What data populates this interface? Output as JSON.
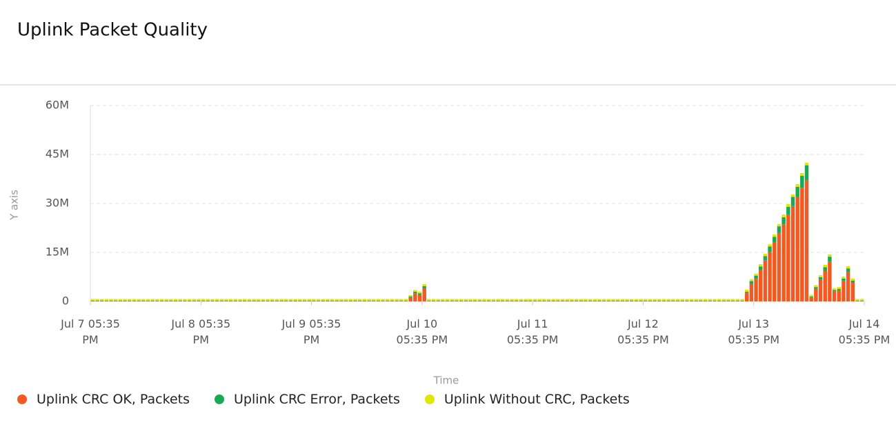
{
  "chart_data": {
    "type": "stacked_bar",
    "title": "Uplink Packet Quality",
    "x_label": "Time",
    "y_label": "Y axis",
    "categories": [
      null,
      null,
      null,
      null,
      null,
      null,
      null,
      null,
      null,
      null,
      null,
      null,
      null,
      null,
      null,
      null,
      null,
      null,
      null,
      null,
      null,
      null,
      null,
      null,
      null,
      null,
      null,
      null,
      null,
      null,
      null,
      null,
      null,
      null,
      null,
      null,
      null,
      null,
      null,
      null,
      null,
      null,
      null,
      null,
      null,
      null,
      null,
      null,
      null,
      null,
      null,
      null,
      null,
      null,
      null,
      null,
      null,
      null,
      null,
      null,
      null,
      null,
      null,
      null,
      null,
      null,
      null,
      null,
      null,
      null,
      null,
      null,
      null,
      null,
      null,
      null,
      null,
      null,
      null,
      null,
      null,
      null,
      null,
      null,
      null,
      null,
      null,
      null,
      null,
      null,
      null,
      null,
      null,
      null,
      null,
      null,
      null,
      null,
      null,
      null,
      null,
      null,
      null,
      null,
      null,
      null,
      null,
      null,
      null,
      null,
      null,
      null,
      null,
      null,
      null,
      null,
      null,
      null,
      null,
      null,
      null,
      null,
      null,
      null,
      null,
      null,
      null,
      null,
      null,
      null,
      null,
      null,
      null,
      null,
      null,
      null,
      null,
      null,
      null,
      null,
      null,
      null,
      null,
      null,
      null,
      null,
      null,
      null,
      null,
      null,
      null,
      null,
      null,
      null,
      null,
      null,
      null,
      null,
      null,
      null,
      null,
      null,
      null,
      null,
      null,
      null,
      null,
      null
    ],
    "xticks": [
      {
        "value": 0,
        "label": "Jul 7 05:35 PM"
      },
      {
        "value": 24,
        "label": "Jul 8 05:35 PM"
      },
      {
        "value": 48,
        "label": "Jul 9 05:35 PM"
      },
      {
        "value": 72,
        "label": "Jul 10 05:35 PM"
      },
      {
        "value": 96,
        "label": "Jul 11 05:35 PM"
      },
      {
        "value": 120,
        "label": "Jul 12 05:35 PM"
      },
      {
        "value": 144,
        "label": "Jul 13 05:35 PM"
      },
      {
        "value": 168,
        "label": "Jul 14 05:35 PM"
      }
    ],
    "ylim": [
      0,
      60000000
    ],
    "yticks": [
      0,
      {
        "value": 15000000,
        "label": "15M"
      },
      {
        "value": 30000000,
        "label": "30M"
      },
      {
        "value": 45000000,
        "label": "45M"
      },
      {
        "value": 60000000,
        "label": "60M"
      }
    ],
    "grid": true,
    "legend": "bottom",
    "series": [
      {
        "name": "Uplink CRC OK, Packets",
        "color": "#f15a22",
        "values": [
          100000,
          100000,
          100000,
          100000,
          100000,
          100000,
          100000,
          100000,
          100000,
          100000,
          100000,
          100000,
          100000,
          100000,
          100000,
          100000,
          100000,
          100000,
          100000,
          100000,
          100000,
          100000,
          100000,
          100000,
          100000,
          100000,
          100000,
          100000,
          100000,
          100000,
          100000,
          100000,
          100000,
          100000,
          100000,
          100000,
          100000,
          100000,
          100000,
          100000,
          100000,
          100000,
          100000,
          100000,
          100000,
          100000,
          100000,
          100000,
          100000,
          100000,
          100000,
          100000,
          100000,
          100000,
          100000,
          100000,
          100000,
          100000,
          100000,
          100000,
          100000,
          100000,
          100000,
          100000,
          100000,
          100000,
          100000,
          100000,
          100000,
          1200000,
          2500000,
          2000000,
          4000000,
          100000,
          100000,
          100000,
          100000,
          100000,
          100000,
          100000,
          100000,
          100000,
          100000,
          100000,
          100000,
          100000,
          100000,
          100000,
          100000,
          100000,
          100000,
          100000,
          100000,
          100000,
          100000,
          100000,
          100000,
          100000,
          100000,
          100000,
          100000,
          100000,
          100000,
          100000,
          100000,
          100000,
          100000,
          100000,
          100000,
          100000,
          100000,
          100000,
          100000,
          100000,
          100000,
          100000,
          100000,
          100000,
          100000,
          100000,
          100000,
          100000,
          100000,
          100000,
          100000,
          100000,
          100000,
          100000,
          100000,
          100000,
          100000,
          100000,
          100000,
          100000,
          100000,
          100000,
          100000,
          100000,
          100000,
          100000,
          100000,
          100000,
          2600000,
          5400000,
          6900000,
          9600000,
          12600000,
          15200000,
          18000000,
          21000000,
          23600000,
          26600000,
          29200000,
          32000000,
          34800000,
          37000000,
          1200000,
          3900000,
          6600000,
          9400000,
          12200000,
          3100000,
          3400000,
          6300000,
          9000000,
          5700000,
          100000,
          100000
        ]
      },
      {
        "name": "Uplink CRC Error, Packets",
        "color": "#1aaa55",
        "values": [
          150000,
          150000,
          150000,
          150000,
          150000,
          150000,
          150000,
          150000,
          150000,
          150000,
          150000,
          150000,
          150000,
          150000,
          150000,
          150000,
          150000,
          150000,
          150000,
          150000,
          150000,
          150000,
          150000,
          150000,
          150000,
          150000,
          150000,
          150000,
          150000,
          150000,
          150000,
          150000,
          150000,
          150000,
          150000,
          150000,
          150000,
          150000,
          150000,
          150000,
          150000,
          150000,
          150000,
          150000,
          150000,
          150000,
          150000,
          150000,
          150000,
          150000,
          150000,
          150000,
          150000,
          150000,
          150000,
          150000,
          150000,
          150000,
          150000,
          150000,
          150000,
          150000,
          150000,
          150000,
          150000,
          150000,
          150000,
          150000,
          150000,
          300000,
          500000,
          500000,
          700000,
          150000,
          150000,
          150000,
          150000,
          150000,
          150000,
          150000,
          150000,
          150000,
          150000,
          150000,
          150000,
          150000,
          150000,
          150000,
          150000,
          150000,
          150000,
          150000,
          150000,
          150000,
          150000,
          150000,
          150000,
          150000,
          150000,
          150000,
          150000,
          150000,
          150000,
          150000,
          150000,
          150000,
          150000,
          150000,
          150000,
          150000,
          150000,
          150000,
          150000,
          150000,
          150000,
          150000,
          150000,
          150000,
          150000,
          150000,
          150000,
          150000,
          150000,
          150000,
          150000,
          150000,
          150000,
          150000,
          150000,
          150000,
          150000,
          150000,
          150000,
          150000,
          150000,
          150000,
          150000,
          150000,
          150000,
          150000,
          150000,
          150000,
          400000,
          800000,
          1000000,
          1100000,
          1300000,
          1600000,
          1800000,
          2000000,
          2200000,
          2400000,
          2800000,
          3100000,
          3700000,
          4700000,
          300000,
          500000,
          800000,
          1100000,
          1500000,
          400000,
          400000,
          700000,
          1100000,
          700000,
          150000,
          150000
        ]
      },
      {
        "name": "Uplink Without CRC, Packets",
        "color": "#e2e600",
        "values": [
          500000,
          500000,
          500000,
          500000,
          500000,
          500000,
          500000,
          500000,
          500000,
          500000,
          500000,
          500000,
          500000,
          500000,
          500000,
          500000,
          500000,
          500000,
          500000,
          500000,
          500000,
          500000,
          500000,
          500000,
          500000,
          500000,
          500000,
          500000,
          500000,
          500000,
          500000,
          500000,
          500000,
          500000,
          500000,
          500000,
          500000,
          500000,
          500000,
          500000,
          500000,
          500000,
          500000,
          500000,
          500000,
          500000,
          500000,
          500000,
          500000,
          500000,
          500000,
          500000,
          500000,
          500000,
          500000,
          500000,
          500000,
          500000,
          500000,
          500000,
          500000,
          500000,
          500000,
          500000,
          500000,
          500000,
          500000,
          500000,
          500000,
          400000,
          500000,
          500000,
          600000,
          500000,
          500000,
          500000,
          500000,
          500000,
          500000,
          500000,
          500000,
          500000,
          500000,
          500000,
          500000,
          500000,
          500000,
          500000,
          500000,
          500000,
          500000,
          500000,
          500000,
          500000,
          500000,
          500000,
          500000,
          500000,
          500000,
          500000,
          500000,
          500000,
          500000,
          500000,
          500000,
          500000,
          500000,
          500000,
          500000,
          500000,
          500000,
          500000,
          500000,
          500000,
          500000,
          500000,
          500000,
          500000,
          500000,
          500000,
          500000,
          500000,
          500000,
          500000,
          500000,
          500000,
          500000,
          500000,
          500000,
          500000,
          500000,
          500000,
          500000,
          500000,
          500000,
          500000,
          500000,
          500000,
          500000,
          500000,
          500000,
          500000,
          600000,
          600000,
          600000,
          700000,
          700000,
          700000,
          700000,
          700000,
          800000,
          800000,
          800000,
          800000,
          800000,
          800000,
          500000,
          600000,
          600000,
          700000,
          700000,
          500000,
          600000,
          600000,
          700000,
          600000,
          500000,
          500000
        ]
      }
    ]
  }
}
